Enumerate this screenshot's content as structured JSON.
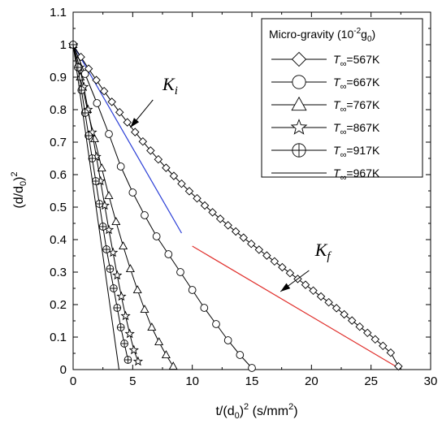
{
  "chart_data": {
    "type": "scatter",
    "title": "",
    "xlabel": "t/(d",
    "xlabel_sub": "0",
    "xlabel_tail": ")",
    "xlabel_sup": "2",
    "xlabel_units": "(s/mm",
    "xlabel_units_sup": "2",
    "xlabel_units_tail": ")",
    "ylabel": "(d/d",
    "ylabel_sub": "0",
    "ylabel_tail": ")",
    "ylabel_sup": "2",
    "xlim": [
      0,
      30
    ],
    "ylim": [
      0,
      1.1
    ],
    "xticks": [
      "0",
      "5",
      "10",
      "15",
      "20",
      "25",
      "30"
    ],
    "yticks": [
      "0",
      "0.1",
      "0.2",
      "0.3",
      "0.4",
      "0.5",
      "0.6",
      "0.7",
      "0.8",
      "0.9",
      "1",
      "1.1"
    ],
    "grid": false,
    "legend": {
      "title_main": "Micro-gravity (10",
      "title_sup": "-2",
      "title_g": "g",
      "title_sub": "0",
      "title_end": ")",
      "placement": "top-right"
    },
    "series": [
      {
        "label_sym": "T",
        "label_sub": "∞",
        "label_val": "=567K",
        "marker": "diamond",
        "x": [
          0,
          0.65,
          1.3,
          1.95,
          2.6,
          3.25,
          3.9,
          4.55,
          5.2,
          5.85,
          6.5,
          7.15,
          7.8,
          8.45,
          9.1,
          9.75,
          10.4,
          11.05,
          11.7,
          12.35,
          13.0,
          13.65,
          14.3,
          14.95,
          15.6,
          16.25,
          16.9,
          17.55,
          18.2,
          18.85,
          19.5,
          20.15,
          20.8,
          21.45,
          22.1,
          22.75,
          23.4,
          24.05,
          24.7,
          25.35,
          26.0,
          26.65,
          27.3
        ],
        "y": [
          1.0,
          0.962,
          0.926,
          0.891,
          0.857,
          0.824,
          0.792,
          0.761,
          0.731,
          0.702,
          0.674,
          0.647,
          0.621,
          0.596,
          0.572,
          0.549,
          0.527,
          0.505,
          0.484,
          0.464,
          0.444,
          0.425,
          0.406,
          0.387,
          0.369,
          0.351,
          0.333,
          0.315,
          0.297,
          0.279,
          0.261,
          0.243,
          0.225,
          0.207,
          0.189,
          0.17,
          0.151,
          0.132,
          0.113,
          0.093,
          0.073,
          0.052,
          0.01
        ]
      },
      {
        "label_sym": "T",
        "label_sub": "∞",
        "label_val": "=667K",
        "marker": "circle",
        "x": [
          0,
          1.0,
          2.0,
          3.0,
          4.0,
          5.0,
          6.0,
          7.0,
          8.0,
          9.0,
          10.0,
          11.0,
          12.0,
          13.0,
          14.0,
          15.0
        ],
        "y": [
          1.0,
          0.91,
          0.82,
          0.725,
          0.625,
          0.545,
          0.475,
          0.41,
          0.355,
          0.3,
          0.245,
          0.19,
          0.14,
          0.09,
          0.045,
          0.005
        ]
      },
      {
        "label_sym": "T",
        "label_sub": "∞",
        "label_val": "=767K",
        "marker": "triangle",
        "x": [
          0,
          0.6,
          1.2,
          1.8,
          2.4,
          3.0,
          3.6,
          4.2,
          4.8,
          5.4,
          6.0,
          6.6,
          7.2,
          7.8,
          8.4
        ],
        "y": [
          1.0,
          0.9,
          0.8,
          0.71,
          0.62,
          0.535,
          0.455,
          0.38,
          0.31,
          0.245,
          0.185,
          0.13,
          0.085,
          0.045,
          0.01
        ]
      },
      {
        "label_sym": "T",
        "label_sub": "∞",
        "label_val": "=867K",
        "marker": "star",
        "x": [
          0,
          0.55,
          0.9,
          1.25,
          1.6,
          1.95,
          2.3,
          2.65,
          3.0,
          3.35,
          3.7,
          4.05,
          4.4,
          4.75,
          5.1,
          5.45
        ],
        "y": [
          1.0,
          0.93,
          0.87,
          0.8,
          0.73,
          0.655,
          0.58,
          0.505,
          0.43,
          0.36,
          0.29,
          0.225,
          0.165,
          0.11,
          0.06,
          0.025
        ]
      },
      {
        "label_sym": "T",
        "label_sub": "∞",
        "label_val": "=917K",
        "marker": "circleplus",
        "x": [
          0,
          0.4,
          0.7,
          1.0,
          1.3,
          1.6,
          1.9,
          2.2,
          2.5,
          2.8,
          3.1,
          3.4,
          3.7,
          4.0,
          4.3,
          4.6
        ],
        "y": [
          1.0,
          0.93,
          0.86,
          0.79,
          0.72,
          0.65,
          0.58,
          0.51,
          0.44,
          0.37,
          0.31,
          0.25,
          0.19,
          0.13,
          0.08,
          0.03
        ]
      },
      {
        "label_sym": "T",
        "label_sub": "∞",
        "label_val": "=967K",
        "marker": "line",
        "x": [
          0,
          3.85
        ],
        "y": [
          1.0,
          0.0
        ]
      }
    ],
    "fit_lines": [
      {
        "color": "#2a3ed6",
        "x": [
          0,
          9.1
        ],
        "y": [
          1.0,
          0.42
        ]
      },
      {
        "color": "#e0302c",
        "x": [
          10.0,
          27.3
        ],
        "y": [
          0.38,
          0.005
        ]
      }
    ],
    "annotations": [
      {
        "text_main": "K",
        "text_sub": "i",
        "tx": 7.5,
        "ty": 0.86,
        "ax1": 6.7,
        "ay1": 0.83,
        "ax2": 4.8,
        "ay2": 0.745
      },
      {
        "text_main": "K",
        "text_sub": "f",
        "tx": 20.3,
        "ty": 0.35,
        "ax1": 19.8,
        "ay1": 0.305,
        "ax2": 17.4,
        "ay2": 0.24
      }
    ]
  }
}
